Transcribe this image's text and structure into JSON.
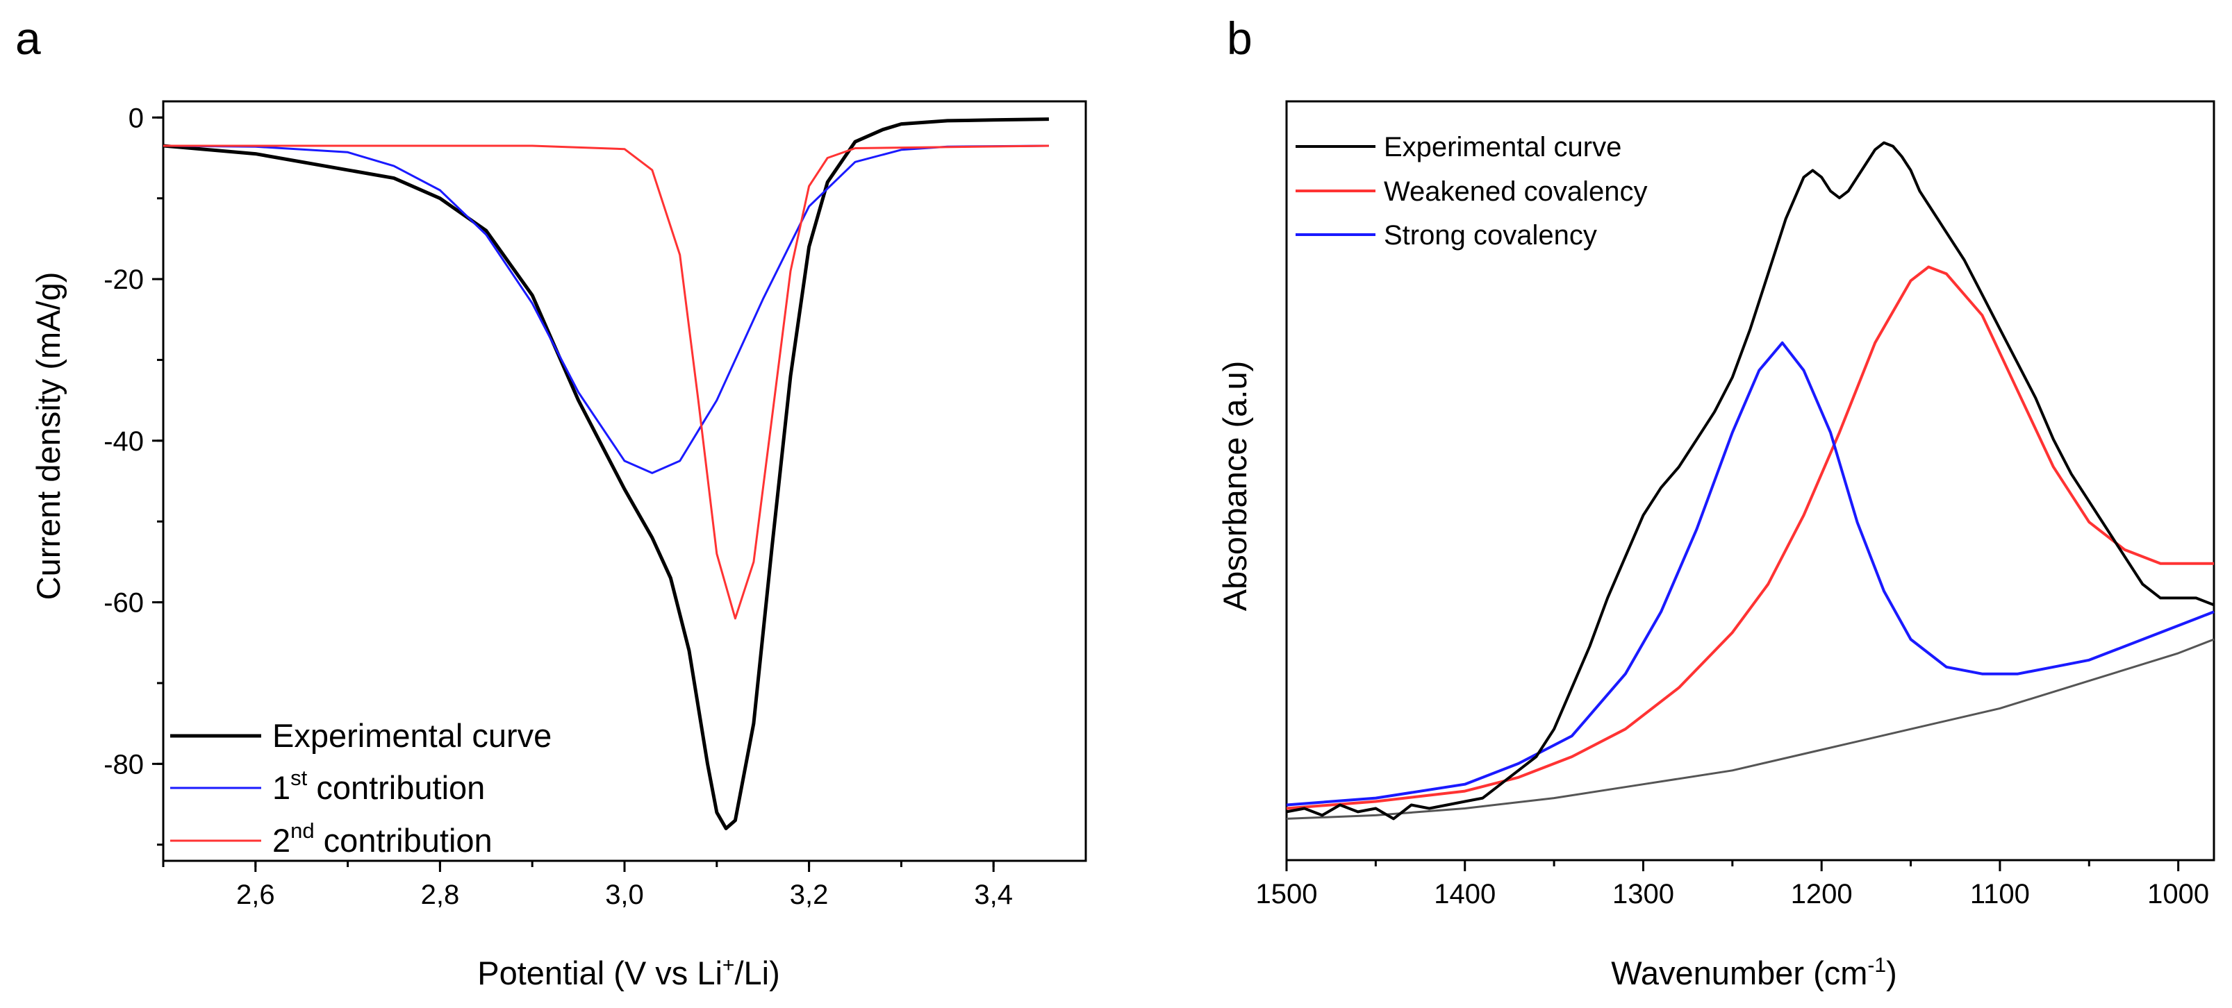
{
  "colors": {
    "experimental": "#000000",
    "blue": "#1a1aff",
    "red": "#ff3333",
    "baseline": "#555555"
  },
  "chart_data": [
    {
      "panel_label": "a",
      "type": "line",
      "xlabel": {
        "prefix": "Potential (V vs Li",
        "sup": "+",
        "suffix": "/Li)"
      },
      "ylabel": "Current density (mA/g)",
      "xlim": [
        2.5,
        3.5
      ],
      "ylim": [
        -92,
        2
      ],
      "xticks": [
        {
          "v": 2.6,
          "label": "2,6"
        },
        {
          "v": 2.8,
          "label": "2,8"
        },
        {
          "v": 3.0,
          "label": "3,0"
        },
        {
          "v": 3.2,
          "label": "3,2"
        },
        {
          "v": 3.4,
          "label": "3,4"
        }
      ],
      "yticks": [
        {
          "v": 0,
          "label": "0"
        },
        {
          "v": -20,
          "label": "-20"
        },
        {
          "v": -40,
          "label": "-40"
        },
        {
          "v": -60,
          "label": "-60"
        },
        {
          "v": -80,
          "label": "-80"
        }
      ],
      "legend": [
        {
          "text": "Experimental curve",
          "sup": "",
          "rest": "",
          "color": "#000000"
        },
        {
          "text": "1",
          "sup": "st",
          "rest": " contribution",
          "color": "#1a1aff"
        },
        {
          "text": "2",
          "sup": "nd",
          "rest": " contribution",
          "color": "#ff3333"
        }
      ],
      "series": [
        {
          "name": "Experimental curve",
          "color": "#000000",
          "x": [
            2.5,
            2.6,
            2.7,
            2.75,
            2.8,
            2.85,
            2.9,
            2.95,
            3.0,
            3.03,
            3.05,
            3.07,
            3.09,
            3.1,
            3.11,
            3.12,
            3.14,
            3.16,
            3.18,
            3.2,
            3.22,
            3.25,
            3.28,
            3.3,
            3.35,
            3.4,
            3.46
          ],
          "y": [
            -3.5,
            -4.5,
            -6.5,
            -7.5,
            -10,
            -14,
            -22,
            -35,
            -46,
            -52,
            -57,
            -66,
            -80,
            -86,
            -88,
            -87,
            -75,
            -53,
            -32,
            -16,
            -8,
            -3,
            -1.5,
            -0.8,
            -0.4,
            -0.3,
            -0.2
          ]
        },
        {
          "name": "1st contribution",
          "color": "#1a1aff",
          "x": [
            2.5,
            2.6,
            2.7,
            2.75,
            2.8,
            2.85,
            2.9,
            2.95,
            3.0,
            3.03,
            3.06,
            3.1,
            3.15,
            3.2,
            3.25,
            3.3,
            3.35,
            3.46
          ],
          "y": [
            -3.5,
            -3.6,
            -4.3,
            -6,
            -9,
            -14.5,
            -23,
            -34,
            -42.5,
            -44,
            -42.5,
            -35,
            -22.5,
            -11,
            -5.5,
            -4,
            -3.6,
            -3.5
          ]
        },
        {
          "name": "2nd contribution",
          "color": "#ff3333",
          "x": [
            2.5,
            2.9,
            3.0,
            3.03,
            3.06,
            3.08,
            3.1,
            3.12,
            3.14,
            3.16,
            3.18,
            3.2,
            3.22,
            3.25,
            3.46
          ],
          "y": [
            -3.5,
            -3.5,
            -3.9,
            -6.5,
            -17,
            -35,
            -54,
            -62,
            -55,
            -37,
            -19,
            -8.5,
            -5,
            -3.8,
            -3.5
          ]
        }
      ]
    },
    {
      "panel_label": "b",
      "type": "line",
      "xlabel": {
        "prefix": "Wavenumber (cm",
        "sup": "-1",
        "suffix": ")"
      },
      "ylabel": "Absorbance (a.u)",
      "xlim": [
        1500,
        980
      ],
      "ylim": [
        -0.05,
        1.05
      ],
      "xticks": [
        {
          "v": 1500,
          "label": "1500"
        },
        {
          "v": 1400,
          "label": "1400"
        },
        {
          "v": 1300,
          "label": "1300"
        },
        {
          "v": 1200,
          "label": "1200"
        },
        {
          "v": 1100,
          "label": "1100"
        },
        {
          "v": 1000,
          "label": "1000"
        }
      ],
      "legend": [
        {
          "text": "Experimental curve",
          "color": "#000000"
        },
        {
          "text": "Weakened covalency",
          "color": "#ff3333"
        },
        {
          "text": "Strong covalency",
          "color": "#1a1aff"
        }
      ],
      "series": [
        {
          "name": "Experimental curve",
          "color": "#000000",
          "x": [
            1500,
            1490,
            1480,
            1470,
            1460,
            1450,
            1440,
            1430,
            1420,
            1410,
            1400,
            1390,
            1380,
            1370,
            1360,
            1350,
            1340,
            1330,
            1320,
            1310,
            1300,
            1290,
            1280,
            1270,
            1260,
            1250,
            1240,
            1230,
            1220,
            1210,
            1205,
            1200,
            1195,
            1190,
            1185,
            1180,
            1175,
            1170,
            1165,
            1160,
            1155,
            1150,
            1145,
            1140,
            1130,
            1120,
            1110,
            1100,
            1090,
            1080,
            1070,
            1060,
            1050,
            1040,
            1030,
            1020,
            1010,
            1000,
            990,
            980
          ],
          "y": [
            0.02,
            0.025,
            0.015,
            0.03,
            0.02,
            0.025,
            0.01,
            0.03,
            0.025,
            0.03,
            0.035,
            0.04,
            0.06,
            0.08,
            0.1,
            0.14,
            0.2,
            0.26,
            0.33,
            0.39,
            0.45,
            0.49,
            0.52,
            0.56,
            0.6,
            0.65,
            0.72,
            0.8,
            0.88,
            0.94,
            0.95,
            0.94,
            0.92,
            0.91,
            0.92,
            0.94,
            0.96,
            0.98,
            0.99,
            0.985,
            0.97,
            0.95,
            0.92,
            0.9,
            0.86,
            0.82,
            0.77,
            0.72,
            0.67,
            0.62,
            0.56,
            0.51,
            0.47,
            0.43,
            0.39,
            0.35,
            0.33,
            0.33,
            0.33,
            0.32
          ]
        },
        {
          "name": "Weakened covalency",
          "color": "#ff3333",
          "x": [
            1500,
            1450,
            1400,
            1370,
            1340,
            1310,
            1280,
            1250,
            1230,
            1210,
            1190,
            1170,
            1150,
            1140,
            1130,
            1110,
            1090,
            1070,
            1050,
            1030,
            1010,
            990,
            980
          ],
          "y": [
            0.025,
            0.035,
            0.05,
            0.07,
            0.1,
            0.14,
            0.2,
            0.28,
            0.35,
            0.45,
            0.57,
            0.7,
            0.79,
            0.81,
            0.8,
            0.74,
            0.63,
            0.52,
            0.44,
            0.4,
            0.38,
            0.38,
            0.38
          ]
        },
        {
          "name": "Strong covalency",
          "color": "#1a1aff",
          "x": [
            1500,
            1450,
            1400,
            1370,
            1340,
            1310,
            1290,
            1270,
            1250,
            1235,
            1222,
            1210,
            1195,
            1180,
            1165,
            1150,
            1130,
            1110,
            1090,
            1070,
            1050,
            1030,
            1010,
            990,
            980
          ],
          "y": [
            0.03,
            0.04,
            0.06,
            0.09,
            0.13,
            0.22,
            0.31,
            0.43,
            0.57,
            0.66,
            0.7,
            0.66,
            0.57,
            0.44,
            0.34,
            0.27,
            0.23,
            0.22,
            0.22,
            0.23,
            0.24,
            0.26,
            0.28,
            0.3,
            0.31
          ]
        },
        {
          "name": "Baseline",
          "color": "#555555",
          "x": [
            1500,
            1450,
            1400,
            1350,
            1300,
            1250,
            1200,
            1150,
            1100,
            1050,
            1000,
            980
          ],
          "y": [
            0.01,
            0.015,
            0.025,
            0.04,
            0.06,
            0.08,
            0.11,
            0.14,
            0.17,
            0.21,
            0.25,
            0.27
          ]
        }
      ]
    }
  ]
}
